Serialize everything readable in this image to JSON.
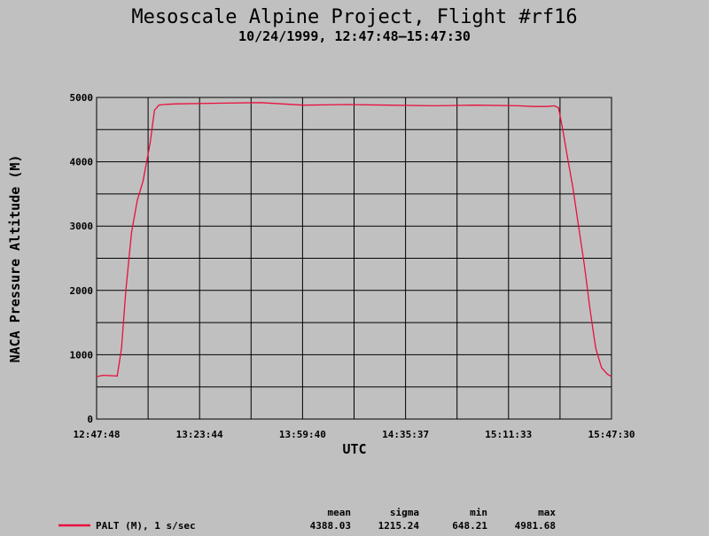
{
  "chart_data": {
    "type": "line",
    "title": "Mesoscale Alpine Project, Flight #rf16",
    "subtitle": "10/24/1999, 12:47:48–15:47:30",
    "xlabel": "UTC",
    "ylabel": "NACA Pressure Altitude (M)",
    "x_tick_labels": [
      "12:47:48",
      "13:23:44",
      "13:59:40",
      "14:35:37",
      "15:11:33",
      "15:47:30"
    ],
    "y_tick_labels": [
      "0",
      "1000",
      "2000",
      "3000",
      "4000",
      "5000"
    ],
    "xlim": [
      "12:47:48",
      "15:47:30"
    ],
    "ylim": [
      0,
      5000
    ],
    "grid": true,
    "series": [
      {
        "name": "PALT (M), 1 s/sec",
        "color": "#e8103c",
        "x": [
          "12:47:48",
          "12:50:00",
          "12:55:00",
          "12:56:30",
          "12:58:00",
          "13:00:00",
          "13:02:00",
          "13:04:00",
          "13:06:30",
          "13:08:00",
          "13:09:30",
          "13:11:00",
          "13:15:00",
          "13:30:00",
          "13:45:00",
          "14:00:00",
          "14:15:00",
          "14:30:00",
          "14:45:00",
          "15:00:00",
          "15:15:00",
          "15:20:00",
          "15:25:00",
          "15:27:30",
          "15:29:00",
          "15:30:30",
          "15:32:00",
          "15:34:00",
          "15:36:00",
          "15:38:00",
          "15:40:00",
          "15:42:00",
          "15:44:00",
          "15:46:00",
          "15:47:30"
        ],
        "y": [
          660,
          680,
          670,
          1100,
          2000,
          2900,
          3400,
          3700,
          4300,
          4800,
          4880,
          4890,
          4900,
          4910,
          4920,
          4880,
          4890,
          4880,
          4870,
          4880,
          4870,
          4860,
          4860,
          4870,
          4840,
          4500,
          4100,
          3600,
          3000,
          2400,
          1700,
          1100,
          800,
          700,
          660
        ]
      }
    ]
  },
  "legend": {
    "label": "PALT (M), 1 s/sec",
    "stats_headers": [
      "mean",
      "sigma",
      "min",
      "max"
    ],
    "stats_values": [
      "4388.03",
      "1215.24",
      "648.21",
      "4981.68"
    ]
  }
}
